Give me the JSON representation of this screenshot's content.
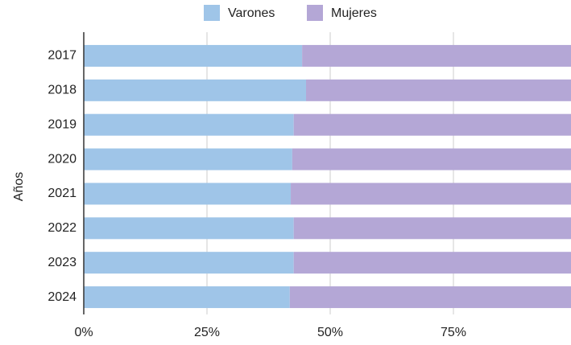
{
  "chart_data": {
    "type": "stacked-barh",
    "y_label": "Años",
    "categories": [
      "2017",
      "2018",
      "2019",
      "2020",
      "2021",
      "2022",
      "2023",
      "2024"
    ],
    "series": [
      {
        "name": "Varones",
        "color": "#9fc5e8",
        "values": [
          44.3,
          45.1,
          42.6,
          42.3,
          42.0,
          42.6,
          42.6,
          41.8
        ]
      },
      {
        "name": "Mujeres",
        "color": "#b4a7d6",
        "values": [
          55.7,
          54.9,
          57.4,
          57.7,
          58.0,
          57.4,
          57.4,
          58.2
        ]
      }
    ],
    "xlim": [
      0,
      100
    ],
    "xticks": [
      {
        "value": 0,
        "label": "0%"
      },
      {
        "value": 25,
        "label": "25%"
      },
      {
        "value": 50,
        "label": "50%"
      },
      {
        "value": 75,
        "label": "75%"
      }
    ],
    "grid": true,
    "legend": "top"
  }
}
